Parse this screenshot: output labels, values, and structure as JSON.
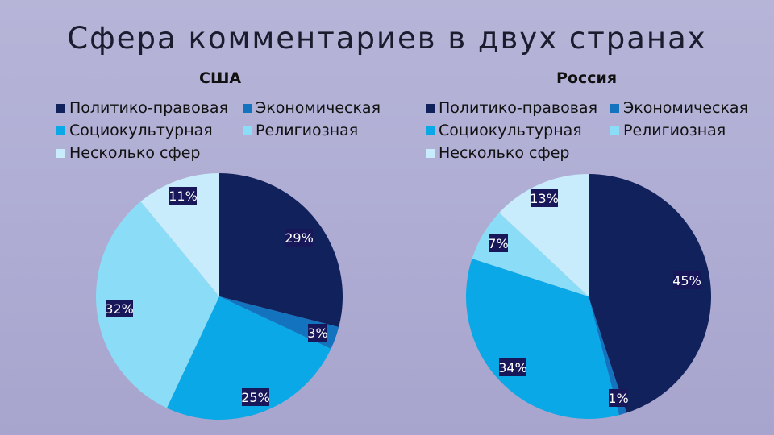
{
  "title": "Сфера комментариев в двух странах",
  "colors": {
    "political_legal": "#10215c",
    "economic": "#1373be",
    "sociocultural": "#0aa8e6",
    "religious": "#8bdcf6",
    "several": "#c8ecfc",
    "label_box": "#17175a",
    "label_text": "#ffffff"
  },
  "chart_data": [
    {
      "type": "pie",
      "title": "США",
      "categories": [
        "Политико-правовая",
        "Экономическая",
        "Социокультурная",
        "Религиозная",
        "Несколько сфер"
      ],
      "values": [
        29,
        3,
        25,
        32,
        11
      ],
      "data_labels": [
        "29%",
        "3%",
        "25%",
        "32%",
        "11%"
      ],
      "legend_position": "top"
    },
    {
      "type": "pie",
      "title": "Россия",
      "categories": [
        "Политико-правовая",
        "Экономическая",
        "Социокультурная",
        "Религиозная",
        "Несколько сфер"
      ],
      "values": [
        45,
        1,
        34,
        7,
        13
      ],
      "data_labels": [
        "45%",
        "1%",
        "34%",
        "7%",
        "13%"
      ],
      "legend_position": "top"
    }
  ]
}
